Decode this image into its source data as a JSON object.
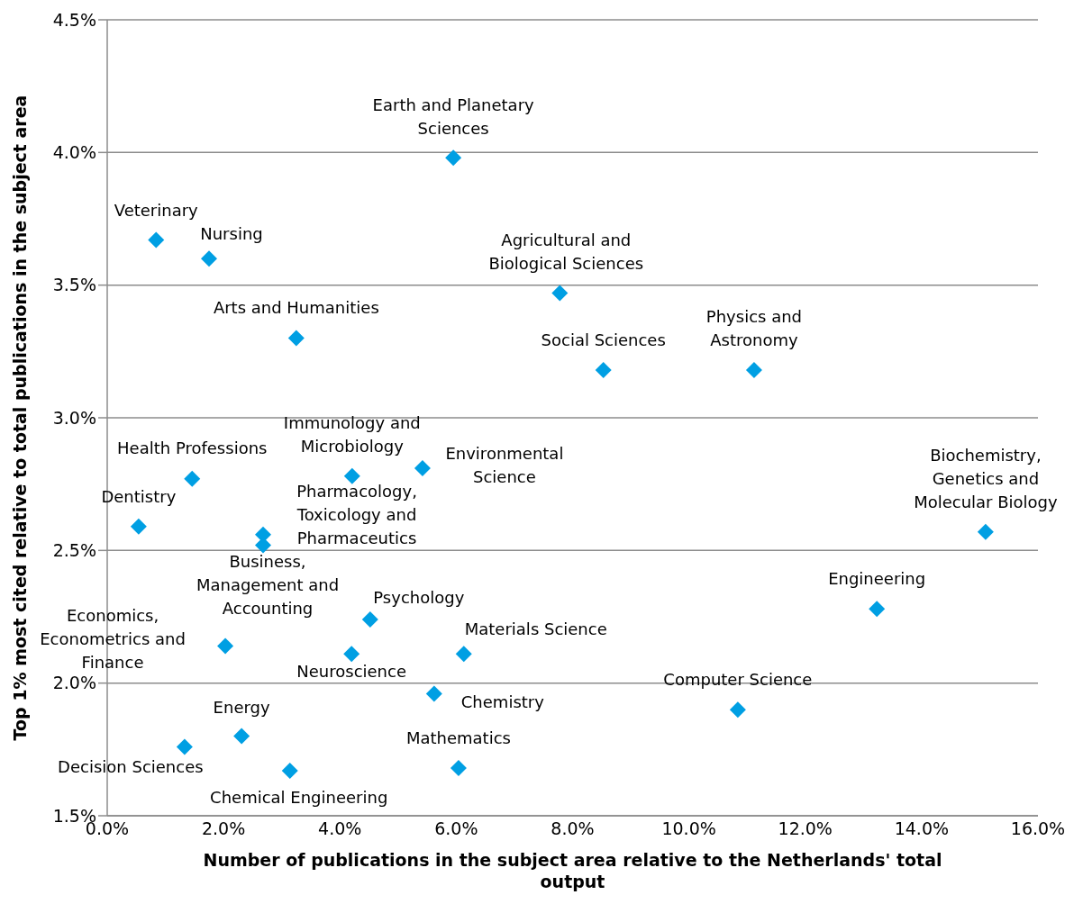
{
  "chart_data": {
    "type": "scatter",
    "xlabel": "Number of publications in the subject area relative to the Netherlands' total output",
    "ylabel": "Top 1% most cited relative to total publications in the subject area",
    "x": [
      5.95,
      0.84,
      1.75,
      3.25,
      7.78,
      8.53,
      11.12,
      1.46,
      4.21,
      5.42,
      0.54,
      2.68,
      2.68,
      2.03,
      4.52,
      4.2,
      6.13,
      5.62,
      13.23,
      10.84,
      15.1,
      2.31,
      1.33,
      3.14,
      6.04
    ],
    "values": [
      3.98,
      3.67,
      3.6,
      3.3,
      3.47,
      3.18,
      3.18,
      2.77,
      2.78,
      2.81,
      2.59,
      2.56,
      2.52,
      2.14,
      2.24,
      2.11,
      2.11,
      1.96,
      2.28,
      1.9,
      2.57,
      1.8,
      1.76,
      1.67,
      1.68
    ],
    "color": "#009fe3",
    "marker": "diamond",
    "grid": "y",
    "xlim": [
      0,
      16
    ],
    "xticks": [
      {
        "value": 0,
        "label": "0.0%"
      },
      {
        "value": 2,
        "label": "2.0%"
      },
      {
        "value": 4,
        "label": "4.0%"
      },
      {
        "value": 6,
        "label": "6.0%"
      },
      {
        "value": 8,
        "label": "8.0%"
      },
      {
        "value": 10,
        "label": "10.0%"
      },
      {
        "value": 12,
        "label": "12.0%"
      },
      {
        "value": 14,
        "label": "14.0%"
      },
      {
        "value": 16,
        "label": "16.0%"
      }
    ],
    "ylim": [
      1.5,
      4.5
    ],
    "yticks": [
      {
        "value": 1.5,
        "label": "1.5%"
      },
      {
        "value": 2,
        "label": "2.0%"
      },
      {
        "value": 2.5,
        "label": "2.5%"
      },
      {
        "value": 3,
        "label": "3.0%"
      },
      {
        "value": 3.5,
        "label": "3.5%"
      },
      {
        "value": 4,
        "label": "4.0%"
      },
      {
        "value": 4.5,
        "label": "4.5%"
      }
    ],
    "annotations": [
      {
        "text": "Earth and Planetary Sciences",
        "x": 5.95,
        "y": 3.98
      },
      {
        "text": "Veterinary",
        "x": 0.84,
        "y": 3.67
      },
      {
        "text": "Nursing",
        "x": 1.75,
        "y": 3.6
      },
      {
        "text": "Arts and Humanities",
        "x": 3.25,
        "y": 3.3
      },
      {
        "text": "Agricultural and Biological Sciences",
        "x": 7.78,
        "y": 3.47
      },
      {
        "text": "Social Sciences",
        "x": 8.53,
        "y": 3.18
      },
      {
        "text": "Physics and Astronomy",
        "x": 11.12,
        "y": 3.18
      },
      {
        "text": "Health Professions",
        "x": 1.46,
        "y": 2.77
      },
      {
        "text": "Immunology and Microbiology",
        "x": 4.21,
        "y": 2.78
      },
      {
        "text": "Environmental Science",
        "x": 5.42,
        "y": 2.81
      },
      {
        "text": "Dentistry",
        "x": 0.54,
        "y": 2.59
      },
      {
        "text": "Pharmacology, Toxicology and Pharmaceutics",
        "x": 2.68,
        "y": 2.56
      },
      {
        "text": "Business, Management and Accounting",
        "x": 2.68,
        "y": 2.52
      },
      {
        "text": "Economics, Econometrics and Finance",
        "x": 2.03,
        "y": 2.14
      },
      {
        "text": "Psychology",
        "x": 4.52,
        "y": 2.24
      },
      {
        "text": "Neuroscience",
        "x": 4.2,
        "y": 2.11
      },
      {
        "text": "Materials Science",
        "x": 6.13,
        "y": 2.11
      },
      {
        "text": "Chemistry",
        "x": 5.62,
        "y": 1.96
      },
      {
        "text": "Engineering",
        "x": 13.23,
        "y": 2.28
      },
      {
        "text": "Computer Science",
        "x": 10.84,
        "y": 1.9
      },
      {
        "text": "Biochemistry, Genetics and Molecular Biology",
        "x": 15.1,
        "y": 2.57
      },
      {
        "text": "Energy",
        "x": 2.31,
        "y": 1.8
      },
      {
        "text": "Decision Sciences",
        "x": 1.33,
        "y": 1.76
      },
      {
        "text": "Chemical Engineering",
        "x": 3.14,
        "y": 1.67
      },
      {
        "text": "Mathematics",
        "x": 6.04,
        "y": 1.68
      }
    ]
  }
}
